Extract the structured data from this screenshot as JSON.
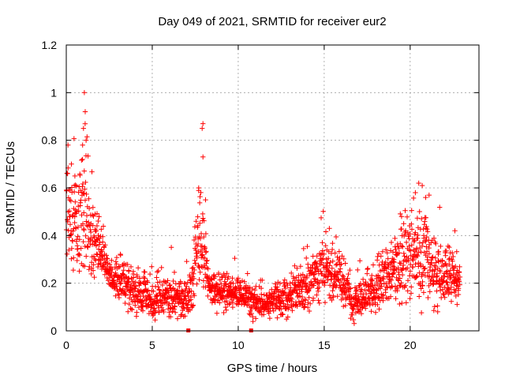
{
  "chart_data": {
    "type": "scatter",
    "title": "Day 049 of 2021, SRMTID for receiver eur2",
    "xlabel": "GPS time / hours",
    "ylabel": "SRMTID / TECUs",
    "xlim": [
      0,
      24
    ],
    "ylim": [
      0,
      1.2
    ],
    "xticks": [
      0,
      5,
      10,
      15,
      20
    ],
    "xtick_labels": [
      "0",
      "5",
      "10",
      "15",
      "20"
    ],
    "yticks": [
      0,
      0.2,
      0.4,
      0.6,
      0.8,
      1,
      1.2
    ],
    "ytick_labels": [
      "0",
      "0.2",
      "0.4",
      "0.6",
      "0.8",
      "1",
      "1.2"
    ],
    "grid": true,
    "marker": "+",
    "color": "#ff0000",
    "gap_markers": [
      7.1,
      10.75
    ],
    "profile": {
      "x": [
        0.0,
        0.3,
        0.6,
        0.9,
        1.2,
        1.5,
        1.8,
        2.1,
        2.5,
        3.0,
        3.5,
        4.0,
        4.5,
        5.0,
        5.5,
        6.0,
        6.5,
        7.0,
        7.3,
        7.6,
        7.8,
        8.0,
        8.3,
        8.7,
        9.2,
        9.7,
        10.2,
        10.7,
        11.2,
        11.7,
        12.2,
        12.7,
        13.2,
        13.7,
        14.2,
        14.7,
        15.2,
        15.7,
        16.2,
        16.7,
        17.2,
        17.7,
        18.2,
        18.7,
        19.2,
        19.7,
        20.2,
        20.6,
        21.0,
        21.5,
        22.0,
        22.5,
        22.9
      ],
      "y": [
        0.55,
        0.5,
        0.45,
        0.5,
        0.48,
        0.4,
        0.35,
        0.3,
        0.25,
        0.22,
        0.2,
        0.17,
        0.16,
        0.12,
        0.14,
        0.15,
        0.13,
        0.12,
        0.2,
        0.35,
        0.45,
        0.35,
        0.18,
        0.17,
        0.16,
        0.15,
        0.16,
        0.12,
        0.11,
        0.11,
        0.12,
        0.14,
        0.17,
        0.18,
        0.2,
        0.25,
        0.25,
        0.22,
        0.18,
        0.12,
        0.13,
        0.15,
        0.2,
        0.22,
        0.25,
        0.3,
        0.32,
        0.3,
        0.3,
        0.25,
        0.22,
        0.24,
        0.18
      ],
      "spread": [
        0.15,
        0.15,
        0.15,
        0.17,
        0.2,
        0.12,
        0.1,
        0.08,
        0.06,
        0.07,
        0.06,
        0.06,
        0.06,
        0.05,
        0.06,
        0.06,
        0.06,
        0.06,
        0.08,
        0.12,
        0.15,
        0.1,
        0.05,
        0.05,
        0.05,
        0.05,
        0.05,
        0.04,
        0.04,
        0.04,
        0.05,
        0.05,
        0.06,
        0.06,
        0.07,
        0.08,
        0.08,
        0.07,
        0.07,
        0.05,
        0.05,
        0.06,
        0.07,
        0.08,
        0.1,
        0.12,
        0.14,
        0.14,
        0.13,
        0.1,
        0.08,
        0.08,
        0.06
      ]
    },
    "peaks": [
      {
        "x": 1.05,
        "y": 1.0
      },
      {
        "x": 1.1,
        "y": 0.92
      },
      {
        "x": 1.0,
        "y": 0.85
      },
      {
        "x": 1.15,
        "y": 0.8
      },
      {
        "x": 0.95,
        "y": 0.78
      },
      {
        "x": 0.1,
        "y": 0.78
      },
      {
        "x": 0.3,
        "y": 0.7
      },
      {
        "x": 0.5,
        "y": 0.65
      },
      {
        "x": 7.95,
        "y": 0.87
      },
      {
        "x": 7.9,
        "y": 0.85
      },
      {
        "x": 7.95,
        "y": 0.73
      },
      {
        "x": 7.7,
        "y": 0.6
      },
      {
        "x": 8.1,
        "y": 0.55
      },
      {
        "x": 20.5,
        "y": 0.62
      },
      {
        "x": 20.7,
        "y": 0.61
      },
      {
        "x": 20.9,
        "y": 0.56
      },
      {
        "x": 21.1,
        "y": 0.57
      },
      {
        "x": 20.3,
        "y": 0.58
      },
      {
        "x": 15.3,
        "y": 0.43
      },
      {
        "x": 19.5,
        "y": 0.48
      },
      {
        "x": 22.6,
        "y": 0.42
      }
    ]
  }
}
